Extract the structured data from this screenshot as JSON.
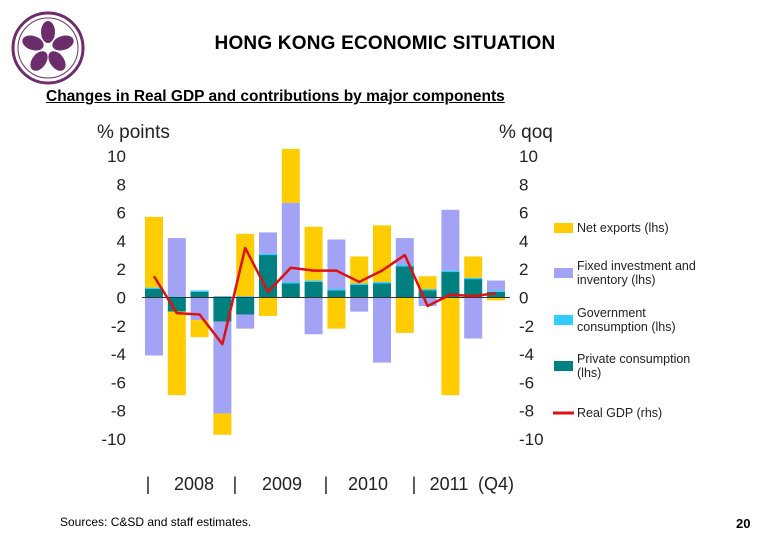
{
  "header": {
    "title": "HONG KONG ECONOMIC SITUATION",
    "subtitle": "Changes in Real GDP and contributions by major components"
  },
  "footer": {
    "source": "Sources: C&SD and staff estimates.",
    "page": "20"
  },
  "chart_data": {
    "type": "bar",
    "ylabel_left": "% points",
    "ylabel_right": "% qoq",
    "ylim": [
      -10,
      10
    ],
    "yticks": [
      10,
      8,
      6,
      4,
      2,
      0,
      -2,
      -4,
      -6,
      -8,
      -10
    ],
    "ytick_labels": [
      "10",
      "8",
      "6",
      "4",
      "2",
      "0",
      "-2",
      "-4",
      "-6",
      "-8",
      "-10"
    ],
    "stacked": true,
    "x_group_labels": [
      "|",
      "2008",
      "|",
      "2009",
      "|",
      "2010",
      "|",
      "2011",
      "(Q4)"
    ],
    "legend_position": "right",
    "colors": {
      "net_exports": "#FFCC00",
      "fixed_investment": "#A3A3F5",
      "government": "#33CCFF",
      "private": "#008080",
      "real_gdp": "#DD1111"
    },
    "quarters": [
      "2008Q1",
      "2008Q2",
      "2008Q3",
      "2008Q4",
      "2009Q1",
      "2009Q2",
      "2009Q3",
      "2009Q4",
      "2010Q1",
      "2010Q2",
      "2010Q3",
      "2010Q4",
      "2011Q1",
      "2011Q2",
      "2011Q3",
      "2011Q4"
    ],
    "series": [
      {
        "name": "Net exports (lhs)",
        "key": "net_exports",
        "values": [
          5.0,
          -5.9,
          -1.2,
          -1.5,
          4.4,
          -1.3,
          3.8,
          3.8,
          -2.2,
          1.9,
          4.0,
          -2.5,
          0.9,
          -6.9,
          1.5,
          -0.2
        ]
      },
      {
        "name": "Fixed investment and inventory (lhs)",
        "key": "fixed_investment",
        "values": [
          -4.1,
          4.1,
          -1.6,
          -6.5,
          -1.0,
          1.5,
          5.6,
          -2.6,
          3.5,
          -1.0,
          -4.6,
          1.9,
          -0.6,
          4.3,
          -2.9,
          0.7
        ]
      },
      {
        "name": "Government consumption (lhs)",
        "key": "government",
        "values": [
          0.1,
          0.1,
          0.1,
          0.1,
          0.1,
          0.1,
          0.1,
          0.1,
          0.1,
          0.1,
          0.1,
          0.1,
          0.1,
          0.1,
          0.1,
          0.1
        ]
      },
      {
        "name": "Private consumption (lhs)",
        "key": "private",
        "values": [
          0.6,
          -1.0,
          0.4,
          -1.7,
          -1.2,
          3.0,
          1.0,
          1.1,
          0.5,
          0.9,
          1.0,
          2.2,
          0.5,
          1.8,
          1.3,
          0.4
        ]
      },
      {
        "name": "Real GDP (rhs)",
        "key": "real_gdp",
        "type": "line",
        "values": [
          1.5,
          -1.1,
          -1.2,
          -3.3,
          3.5,
          0.4,
          2.1,
          1.9,
          1.9,
          1.1,
          1.9,
          3.0,
          -0.6,
          0.2,
          0.1,
          0.3
        ]
      }
    ]
  }
}
